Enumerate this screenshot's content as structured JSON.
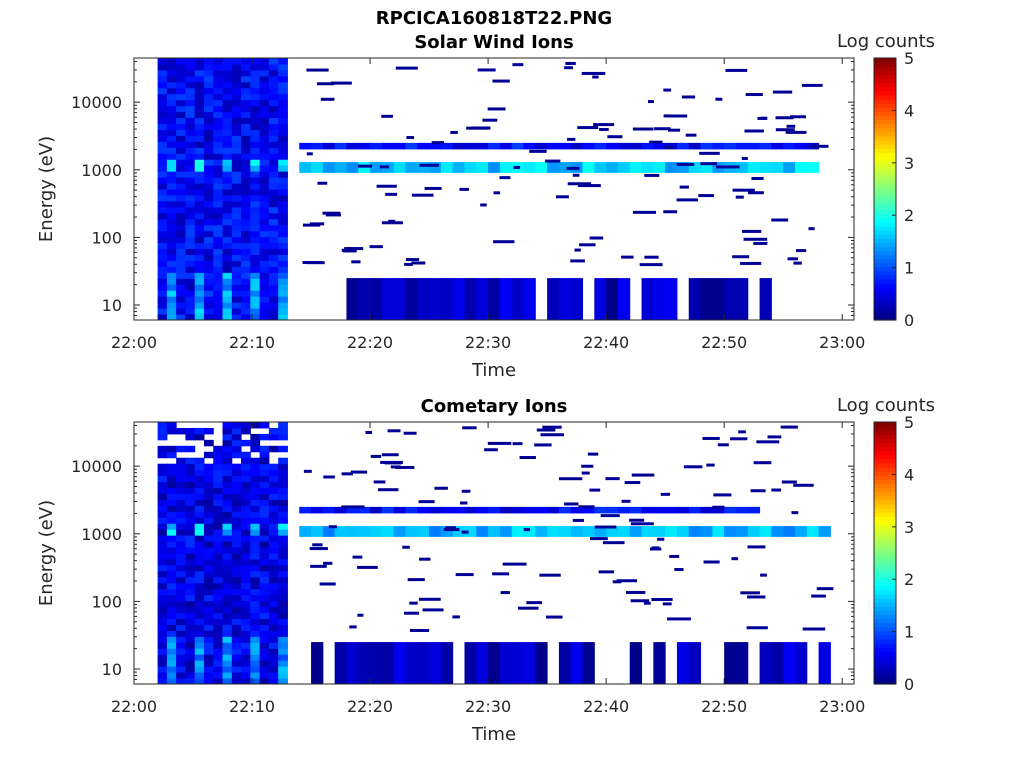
{
  "figure_title": "RPCICA160818T22.PNG",
  "panels": [
    {
      "title": "Solar Wind Ions",
      "xlabel": "Time",
      "ylabel": "Energy (eV)",
      "colorbar_label": "Log counts"
    },
    {
      "title": "Cometary Ions",
      "xlabel": "Time",
      "ylabel": "Energy (eV)",
      "colorbar_label": "Log counts"
    }
  ],
  "chart_data": [
    {
      "type": "heatmap",
      "title": "Solar Wind Ions",
      "xlabel": "Time",
      "ylabel": "Energy (eV)",
      "yscale": "log",
      "x_ticks": [
        "22:00",
        "22:10",
        "22:20",
        "22:30",
        "22:40",
        "22:50",
        "23:00"
      ],
      "xlim": [
        "22:00",
        "23:01"
      ],
      "y_ticks": [
        10,
        100,
        1000,
        10000
      ],
      "ylim": [
        6,
        45000
      ],
      "colorbar": {
        "label": "Log counts",
        "ticks": [
          0,
          1,
          2,
          3,
          4,
          5
        ],
        "range": [
          0,
          5
        ],
        "colormap": "jet"
      },
      "dense_region": {
        "start": "22:02",
        "end": "22:13",
        "typical_log_counts": 0.6
      },
      "bands": [
        {
          "energy_low": 900,
          "energy_high": 1300,
          "start": "22:14",
          "end": "22:58",
          "log_counts": 1.5
        },
        {
          "energy_low": 2000,
          "energy_high": 2500,
          "start": "22:14",
          "end": "22:58",
          "log_counts": 0.5
        },
        {
          "energy_low": 6,
          "energy_high": 25,
          "start": "22:15",
          "end": "22:54",
          "log_counts": 0.2
        }
      ]
    },
    {
      "type": "heatmap",
      "title": "Cometary Ions",
      "xlabel": "Time",
      "ylabel": "Energy (eV)",
      "yscale": "log",
      "x_ticks": [
        "22:00",
        "22:10",
        "22:20",
        "22:30",
        "22:40",
        "22:50",
        "23:00"
      ],
      "xlim": [
        "22:00",
        "23:01"
      ],
      "y_ticks": [
        10,
        100,
        1000,
        10000
      ],
      "ylim": [
        6,
        45000
      ],
      "colorbar": {
        "label": "Log counts",
        "ticks": [
          0,
          1,
          2,
          3,
          4,
          5
        ],
        "range": [
          0,
          5
        ],
        "colormap": "jet"
      },
      "dense_region": {
        "start": "22:02",
        "end": "22:13",
        "typical_log_counts": 0.5
      },
      "bands": [
        {
          "energy_low": 900,
          "energy_high": 1300,
          "start": "22:14",
          "end": "22:59",
          "log_counts": 1.4
        },
        {
          "energy_low": 2000,
          "energy_high": 2500,
          "start": "22:14",
          "end": "22:53",
          "log_counts": 0.5
        },
        {
          "energy_low": 6,
          "energy_high": 25,
          "start": "22:15",
          "end": "22:59",
          "log_counts": 0.2
        }
      ]
    }
  ]
}
